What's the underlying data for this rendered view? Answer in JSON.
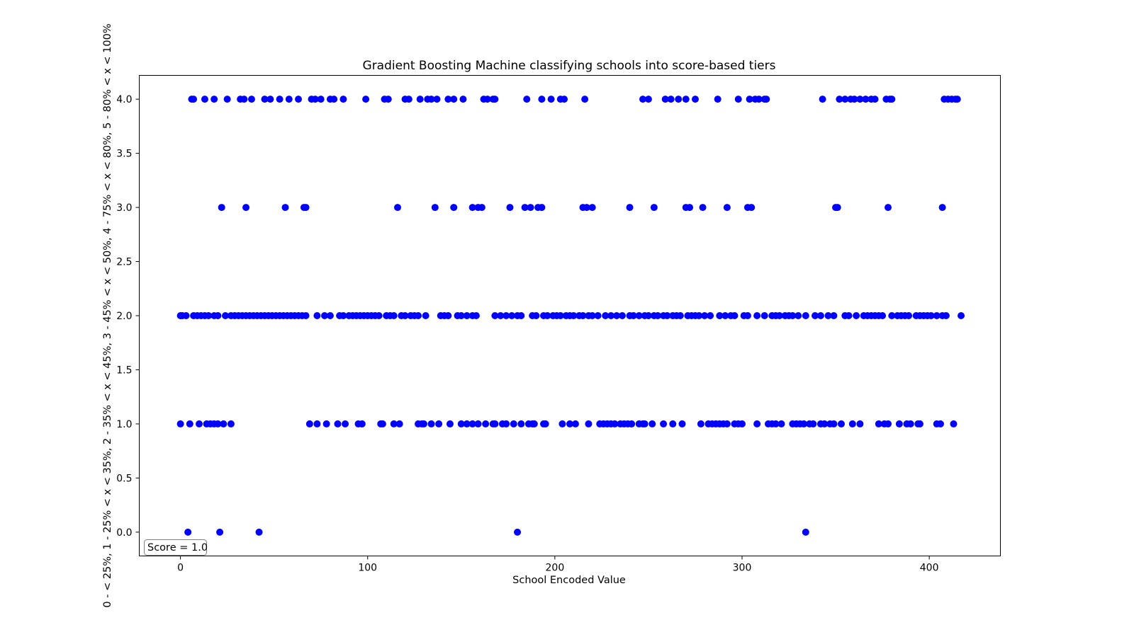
{
  "chart_data": {
    "type": "scatter",
    "title": "Gradient Boosting Machine classifying schools into score-based tiers",
    "xlabel": "School Encoded Value",
    "ylabel": "0 - < 25%, 1 - 25% < x < 35%, 2 - 35% < x < 45%, 3 - 45% < x < 50%, 4 - 75% < x < 80%, 5 - 80% < x < 100%",
    "xlim": [
      -22,
      438
    ],
    "ylim": [
      -0.22,
      4.22
    ],
    "xticks": [
      0,
      100,
      200,
      300,
      400
    ],
    "xtick_labels": [
      "0",
      "100",
      "200",
      "300",
      "400"
    ],
    "yticks": [
      0.0,
      0.5,
      1.0,
      1.5,
      2.0,
      2.5,
      3.0,
      3.5,
      4.0
    ],
    "ytick_labels": [
      "0.0",
      "0.5",
      "1.0",
      "1.5",
      "2.0",
      "2.5",
      "3.0",
      "3.5",
      "4.0"
    ],
    "grid": false,
    "marker_color": "#0000ff",
    "annotation": "Score = 1.0",
    "series": [
      {
        "tier": 0,
        "x": [
          4,
          21,
          42,
          180,
          334
        ]
      },
      {
        "tier": 1,
        "x": [
          0,
          5,
          10,
          14,
          16,
          18,
          20,
          23,
          27,
          69,
          73,
          78,
          84,
          88,
          95,
          97,
          107,
          108,
          114,
          117,
          127,
          129,
          130,
          134,
          138,
          144,
          150,
          153,
          156,
          159,
          163,
          167,
          168,
          172,
          174,
          178,
          182,
          186,
          188,
          189,
          194,
          195,
          204,
          208,
          211,
          218,
          224,
          226,
          228,
          230,
          232,
          235,
          237,
          239,
          241,
          245,
          247,
          248,
          252,
          258,
          263,
          268,
          278,
          282,
          284,
          286,
          288,
          290,
          292,
          296,
          298,
          300,
          308,
          314,
          316,
          318,
          321,
          327,
          329,
          331,
          333,
          336,
          338,
          342,
          344,
          347,
          349,
          353,
          359,
          363,
          373,
          376,
          378,
          384,
          388,
          390,
          394,
          395,
          404,
          406,
          413
        ]
      },
      {
        "tier": 2,
        "x": [
          0,
          1,
          3,
          7,
          9,
          11,
          13,
          15,
          18,
          20,
          24,
          27,
          29,
          31,
          33,
          35,
          37,
          39,
          41,
          43,
          45,
          47,
          49,
          51,
          53,
          55,
          57,
          59,
          61,
          63,
          65,
          67,
          73,
          77,
          80,
          85,
          87,
          90,
          92,
          94,
          96,
          98,
          100,
          102,
          104,
          106,
          110,
          112,
          114,
          118,
          120,
          123,
          125,
          127,
          131,
          139,
          141,
          143,
          148,
          150,
          153,
          156,
          158,
          168,
          171,
          174,
          177,
          180,
          182,
          188,
          190,
          194,
          196,
          199,
          201,
          203,
          206,
          208,
          210,
          213,
          215,
          218,
          220,
          223,
          227,
          230,
          233,
          236,
          240,
          242,
          245,
          248,
          250,
          253,
          255,
          258,
          260,
          263,
          265,
          267,
          271,
          273,
          275,
          277,
          280,
          283,
          288,
          291,
          294,
          296,
          301,
          303,
          308,
          312,
          316,
          318,
          320,
          323,
          325,
          327,
          330,
          334,
          339,
          342,
          346,
          349,
          355,
          357,
          361,
          365,
          367,
          369,
          371,
          373,
          375,
          380,
          383,
          385,
          387,
          389,
          393,
          395,
          397,
          399,
          401,
          404,
          407,
          409,
          417
        ]
      },
      {
        "tier": 3,
        "x": [
          22,
          35,
          56,
          66,
          67,
          116,
          136,
          146,
          156,
          159,
          161,
          176,
          184,
          187,
          191,
          193,
          215,
          217,
          220,
          240,
          253,
          270,
          272,
          279,
          292,
          303,
          305,
          350,
          351,
          378,
          407
        ]
      },
      {
        "tier": 4,
        "x": [
          6,
          7,
          13,
          18,
          25,
          32,
          34,
          38,
          45,
          48,
          53,
          58,
          63,
          70,
          72,
          75,
          80,
          82,
          87,
          99,
          109,
          111,
          120,
          122,
          128,
          132,
          134,
          137,
          143,
          146,
          151,
          162,
          164,
          167,
          168,
          185,
          193,
          198,
          203,
          205,
          216,
          247,
          250,
          259,
          262,
          266,
          270,
          275,
          287,
          298,
          304,
          307,
          309,
          312,
          313,
          343,
          352,
          355,
          358,
          360,
          363,
          366,
          369,
          371,
          377,
          379,
          380,
          408,
          410,
          412,
          414,
          415
        ]
      }
    ]
  }
}
